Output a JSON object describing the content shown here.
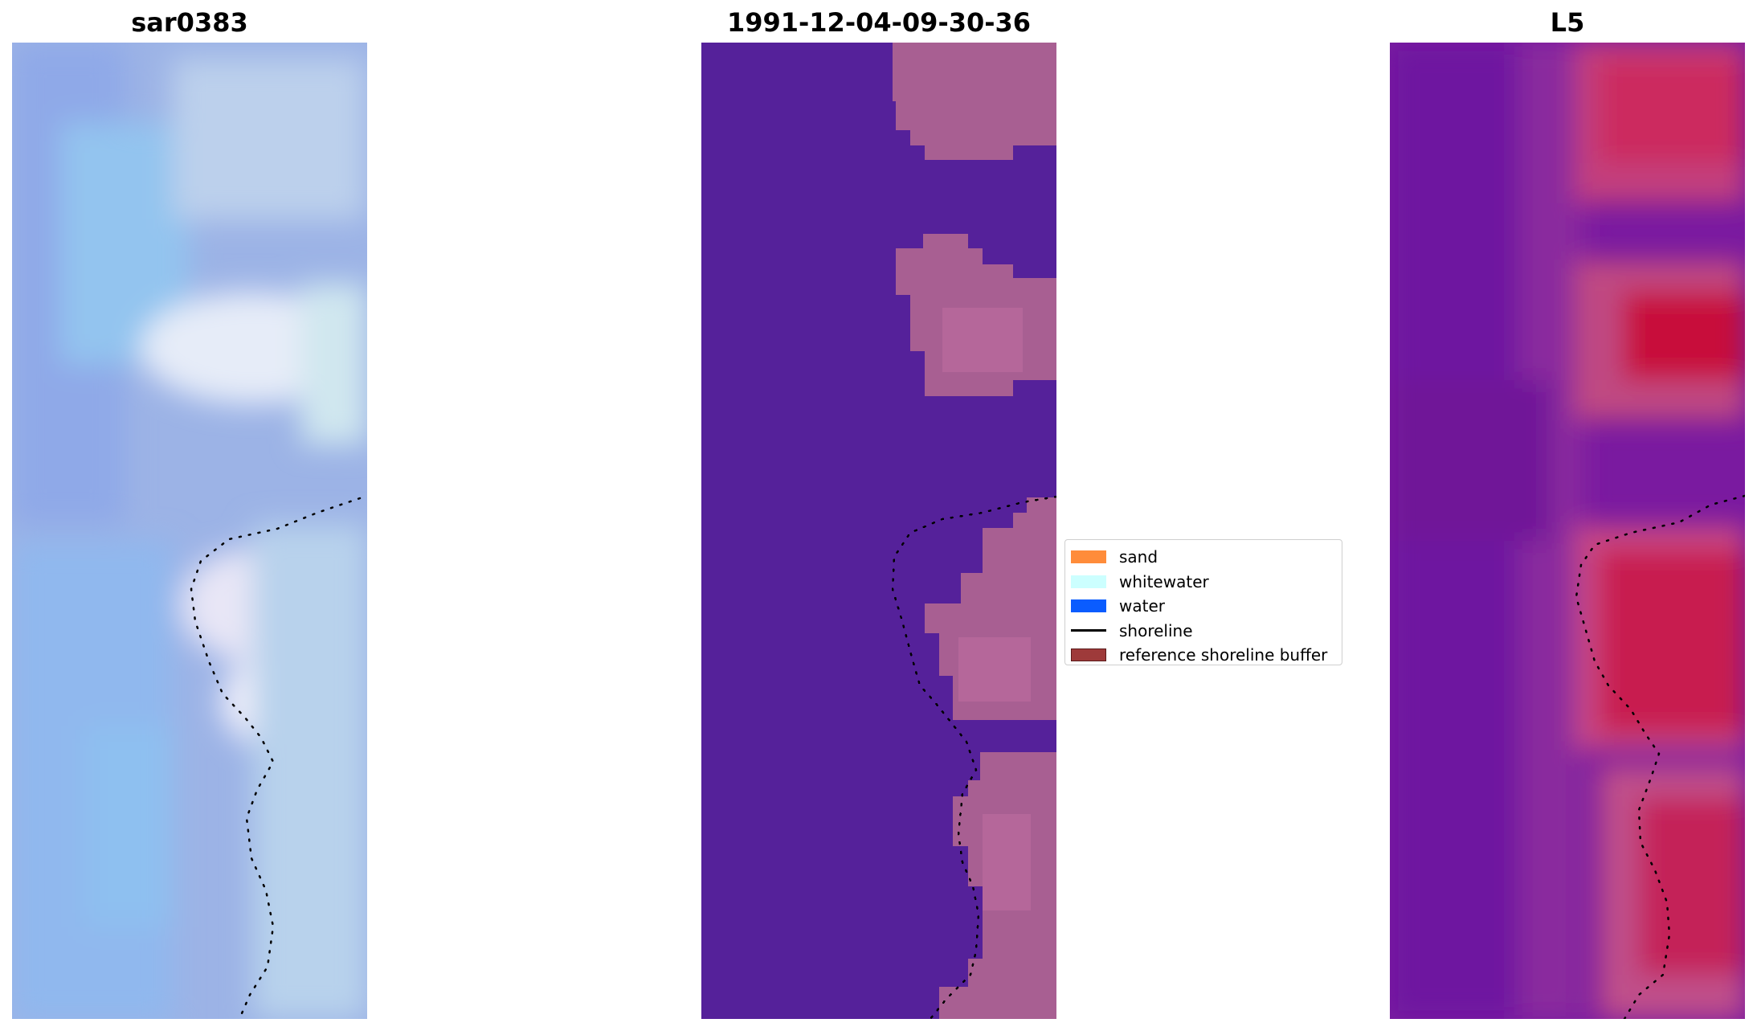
{
  "panels": [
    {
      "title": "sar0383",
      "kind": "rgb",
      "base_color": "#9cb3e6"
    },
    {
      "title": "1991-12-04-09-30-36",
      "kind": "classified",
      "base_color": "#55219a",
      "overlay_color": "#b0668f"
    },
    {
      "title": "L5",
      "kind": "index",
      "base_color": "#7a1aa0",
      "overlay_color": "#c4124a"
    }
  ],
  "legend": {
    "items": [
      {
        "label": "sand",
        "color": "#ff8c3a",
        "type": "patch"
      },
      {
        "label": "whitewater",
        "color": "#ccffff",
        "type": "patch"
      },
      {
        "label": "water",
        "color": "#0a5cff",
        "type": "patch"
      },
      {
        "label": "shoreline",
        "color": "#000000",
        "type": "line"
      },
      {
        "label": "reference shoreline buffer",
        "color": "#9e3a3a",
        "type": "patch"
      }
    ]
  }
}
